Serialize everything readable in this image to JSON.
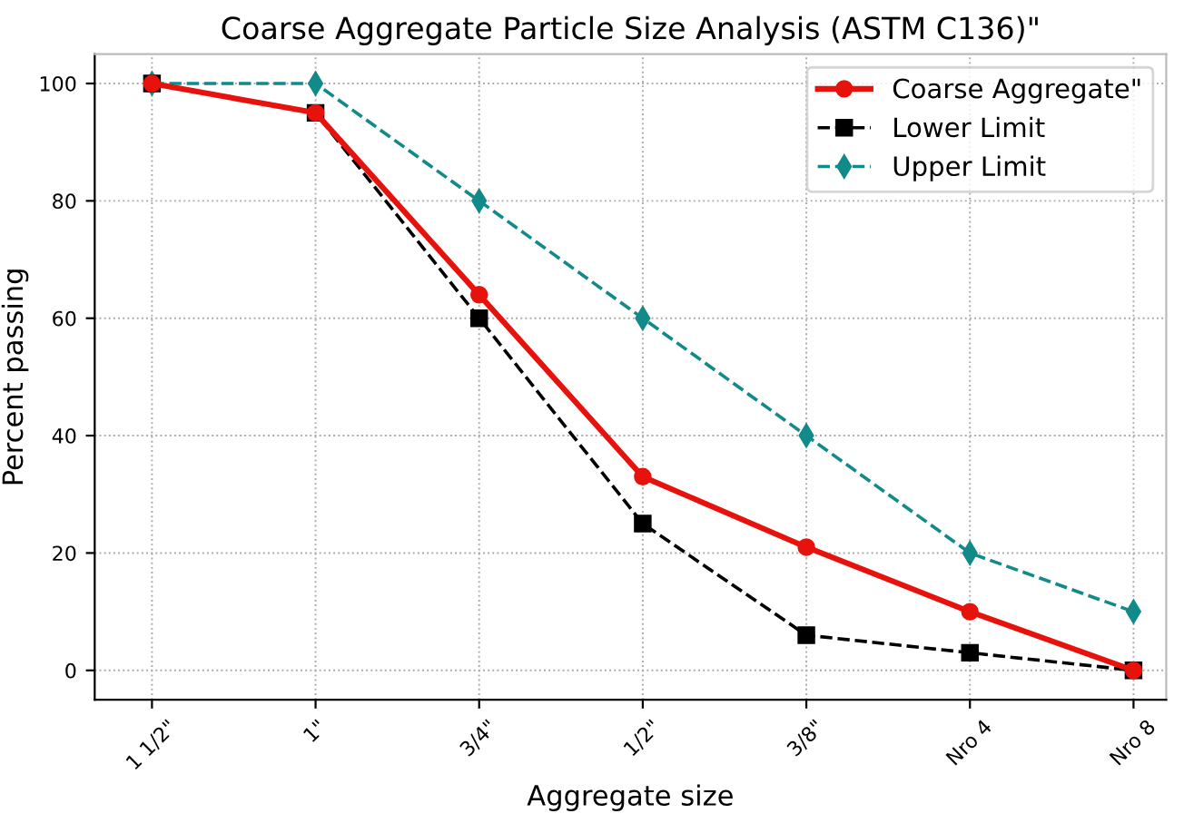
{
  "chart_data": {
    "type": "line",
    "title": "Coarse Aggregate Particle Size Analysis (ASTM C136)\"",
    "xlabel": "Aggregate size",
    "ylabel": "Percent passing",
    "categories": [
      "1 1/2\"",
      "1\"",
      "3/4\"",
      "1/2\"",
      "3/8\"",
      "Nro 4",
      "Nro 8"
    ],
    "series": [
      {
        "name": "Coarse Aggregate\"",
        "color": "#e8120c",
        "marker": "circle",
        "line_style": "solid",
        "values": [
          100,
          95,
          64,
          33,
          21,
          10,
          0
        ]
      },
      {
        "name": "Lower Limit",
        "color": "#000000",
        "marker": "square",
        "line_style": "dashed",
        "values": [
          100,
          95,
          60,
          25,
          6,
          3,
          0
        ]
      },
      {
        "name": "Upper Limit",
        "color": "#138a8a",
        "marker": "diamond",
        "line_style": "dashed",
        "values": [
          100,
          100,
          80,
          60,
          40,
          20,
          10
        ]
      }
    ],
    "ylim": [
      -5,
      105
    ],
    "yticks": [
      0,
      20,
      40,
      60,
      80,
      100
    ],
    "grid": true,
    "legend": "top right"
  }
}
